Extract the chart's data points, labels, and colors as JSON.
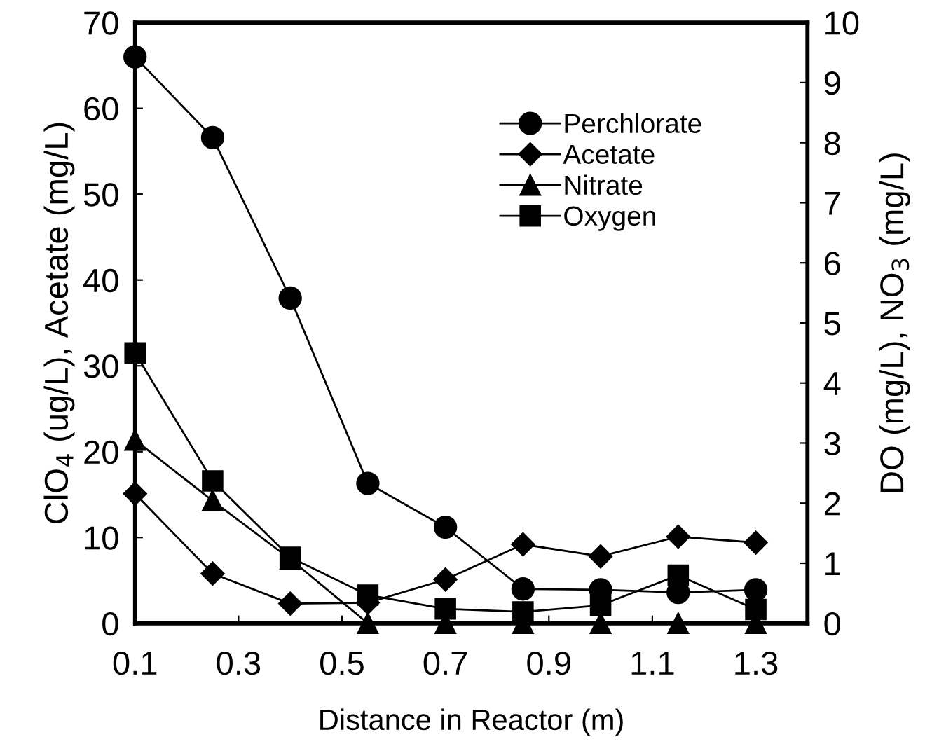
{
  "chart_data": {
    "type": "line",
    "xlabel": "Distance in Reactor (m)",
    "ylabel": "ClO$_{4}$ (ug/L), Acetate (mg/L)",
    "y2label": "DO (mg/L), NO$_{3}$ (mg/L)",
    "x": [
      0.1,
      0.25,
      0.4,
      0.55,
      0.7,
      0.85,
      1.0,
      1.15,
      1.3
    ],
    "series": [
      {
        "name": "Perchlorate",
        "color": "#000000",
        "marker": "circle",
        "axis": "y",
        "values": [
          66.0,
          56.6,
          37.9,
          16.3,
          11.2,
          4.0,
          3.9,
          3.6,
          3.9
        ]
      },
      {
        "name": "Acetate",
        "color": "#000000",
        "marker": "diamond",
        "axis": "y",
        "values": [
          15.1,
          5.8,
          2.3,
          2.4,
          5.1,
          9.2,
          7.8,
          10.1,
          9.4
        ]
      },
      {
        "name": "Nitrate",
        "color": "#000000",
        "marker": "triangle",
        "axis": "y2",
        "values": [
          3.05,
          2.04,
          1.07,
          0,
          0,
          0,
          0,
          0,
          0
        ]
      },
      {
        "name": "Oxygen",
        "color": "#000000",
        "marker": "square",
        "axis": "y2",
        "values": [
          4.5,
          2.37,
          1.1,
          0.47,
          0.24,
          0.19,
          0.3,
          0.8,
          0.23
        ]
      }
    ],
    "xlim": [
      0.1,
      1.4
    ],
    "xticks": [
      0.1,
      0.3,
      0.5,
      0.7,
      0.9,
      1.1,
      1.3
    ],
    "ylim": [
      0,
      70
    ],
    "yticks": [
      0,
      10,
      20,
      30,
      40,
      50,
      60,
      70
    ],
    "y2lim": [
      0,
      10
    ],
    "y2ticks": [
      0,
      1,
      2,
      3,
      4,
      5,
      6,
      7,
      8,
      9,
      10
    ],
    "grid": false,
    "legend": "top right",
    "line_style": "solid"
  }
}
